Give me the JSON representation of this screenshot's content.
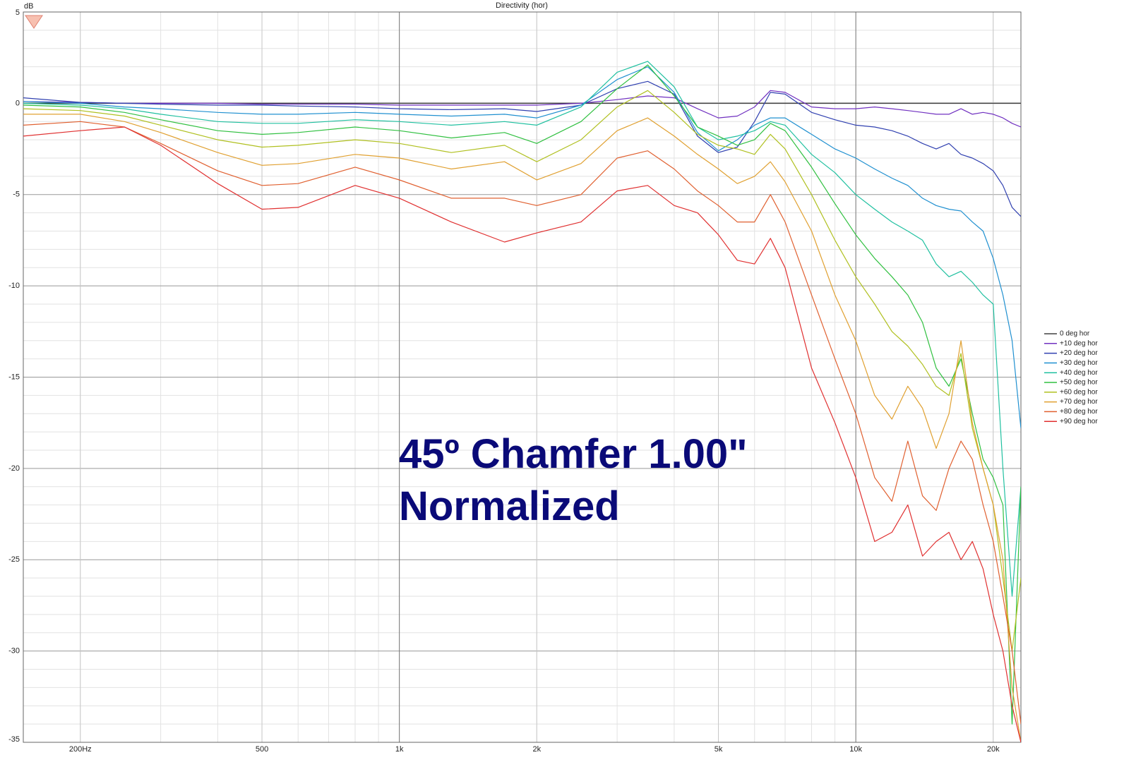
{
  "chart_data": {
    "type": "line",
    "title": "Directivity (hor)",
    "y_label": "dB",
    "annotations": [
      "45º Chamfer 1.00\"",
      "Normalized"
    ],
    "log_x": true,
    "grid": true,
    "legend": "right",
    "xlim": [
      150,
      23000
    ],
    "ylim": [
      -35,
      5
    ],
    "xticks": [
      {
        "value": 200,
        "label": "200Hz"
      },
      500,
      {
        "value": 1000,
        "label": "1k"
      },
      {
        "value": 2000,
        "label": "2k"
      },
      {
        "value": 5000,
        "label": "5k"
      },
      {
        "value": 10000,
        "label": "10k"
      },
      {
        "value": 20000,
        "label": "20k"
      }
    ],
    "yticks": [
      5,
      0,
      -5,
      -10,
      -15,
      -20,
      -25,
      -30,
      -35
    ],
    "x": [
      150,
      200,
      250,
      300,
      400,
      500,
      600,
      800,
      1000,
      1300,
      1700,
      2000,
      2500,
      3000,
      3500,
      4000,
      4500,
      5000,
      5500,
      6000,
      6500,
      7000,
      8000,
      9000,
      10000,
      11000,
      12000,
      13000,
      14000,
      15000,
      16000,
      17000,
      18000,
      19000,
      20000,
      21000,
      22000,
      23000
    ],
    "series": [
      {
        "name": "0 deg hor",
        "color": "#404040",
        "values": [
          0,
          0,
          0,
          0,
          0,
          0,
          0,
          0,
          0,
          0,
          0,
          0,
          0,
          0,
          0,
          0,
          0,
          0,
          0,
          0,
          0,
          0,
          0,
          0,
          0,
          0,
          0,
          0,
          0,
          0,
          0,
          0,
          0,
          0,
          0,
          0,
          0,
          0
        ]
      },
      {
        "name": "+10 deg hor",
        "color": "#7030c0",
        "values": [
          0.1,
          0.05,
          0,
          0,
          0,
          -0.05,
          -0.05,
          -0.05,
          -0.1,
          -0.1,
          -0.1,
          -0.1,
          0,
          0.2,
          0.4,
          0.3,
          -0.3,
          -0.8,
          -0.7,
          -0.2,
          0.7,
          0.6,
          -0.2,
          -0.3,
          -0.3,
          -0.2,
          -0.3,
          -0.4,
          -0.5,
          -0.6,
          -0.6,
          -0.3,
          -0.6,
          -0.5,
          -0.6,
          -0.8,
          -1.1,
          -1.3
        ]
      },
      {
        "name": "+20 deg hor",
        "color": "#3040b0",
        "values": [
          0.3,
          0.05,
          0,
          -0.05,
          -0.1,
          -0.1,
          -0.15,
          -0.2,
          -0.3,
          -0.35,
          -0.3,
          -0.45,
          -0.1,
          0.8,
          1.2,
          0.5,
          -1.8,
          -2.7,
          -2.4,
          -1.0,
          0.6,
          0.5,
          -0.5,
          -0.9,
          -1.2,
          -1.3,
          -1.5,
          -1.8,
          -2.2,
          -2.5,
          -2.2,
          -2.8,
          -3.0,
          -3.3,
          -3.7,
          -4.5,
          -5.7,
          -6.2
        ]
      },
      {
        "name": "+30 deg hor",
        "color": "#2090d0",
        "values": [
          0.1,
          0,
          -0.2,
          -0.3,
          -0.5,
          -0.6,
          -0.6,
          -0.5,
          -0.6,
          -0.7,
          -0.6,
          -0.8,
          -0.1,
          1.3,
          2.0,
          0.6,
          -1.6,
          -2.6,
          -2.0,
          -1.2,
          -0.8,
          -0.8,
          -1.7,
          -2.5,
          -3.0,
          -3.6,
          -4.1,
          -4.5,
          -5.2,
          -5.6,
          -5.8,
          -5.9,
          -6.5,
          -7.0,
          -8.5,
          -10.5,
          -13,
          -17.8
        ]
      },
      {
        "name": "+40 deg hor",
        "color": "#20c0a0",
        "values": [
          0,
          -0.1,
          -0.3,
          -0.6,
          -1.0,
          -1.1,
          -1.1,
          -0.9,
          -1.0,
          -1.2,
          -1.0,
          -1.2,
          -0.2,
          1.7,
          2.3,
          0.9,
          -1.3,
          -2.0,
          -1.8,
          -1.5,
          -1.0,
          -1.2,
          -2.8,
          -3.8,
          -5.0,
          -5.8,
          -6.5,
          -7.0,
          -7.5,
          -8.8,
          -9.5,
          -9.2,
          -9.8,
          -10.5,
          -11,
          -20,
          -27,
          -21
        ]
      },
      {
        "name": "+50 deg hor",
        "color": "#30c040",
        "values": [
          -0.1,
          -0.2,
          -0.5,
          -0.9,
          -1.5,
          -1.7,
          -1.6,
          -1.3,
          -1.5,
          -1.9,
          -1.6,
          -2.2,
          -1.0,
          0.8,
          2.1,
          0.4,
          -1.3,
          -1.8,
          -2.3,
          -2.0,
          -1.1,
          -1.5,
          -3.5,
          -5.5,
          -7.2,
          -8.5,
          -9.5,
          -10.5,
          -12,
          -14.5,
          -15.5,
          -14,
          -17,
          -19.5,
          -20.5,
          -22,
          -34,
          -21
        ]
      },
      {
        "name": "+60 deg hor",
        "color": "#b0c020",
        "values": [
          -0.3,
          -0.4,
          -0.7,
          -1.2,
          -2.0,
          -2.4,
          -2.3,
          -2.0,
          -2.2,
          -2.7,
          -2.3,
          -3.2,
          -2.0,
          -0.2,
          0.7,
          -0.5,
          -1.7,
          -2.3,
          -2.5,
          -2.8,
          -1.7,
          -2.5,
          -5.0,
          -7.5,
          -9.5,
          -11,
          -12.5,
          -13.3,
          -14.3,
          -15.5,
          -16,
          -13.7,
          -17.8,
          -20,
          -22,
          -26,
          -30,
          -26
        ]
      },
      {
        "name": "+70 deg hor",
        "color": "#e0a030",
        "values": [
          -0.6,
          -0.6,
          -1.0,
          -1.6,
          -2.7,
          -3.4,
          -3.3,
          -2.8,
          -3.0,
          -3.6,
          -3.2,
          -4.2,
          -3.3,
          -1.5,
          -0.8,
          -1.8,
          -2.8,
          -3.6,
          -4.4,
          -4.0,
          -3.2,
          -4.3,
          -7.0,
          -10.5,
          -13,
          -16,
          -17.3,
          -15.5,
          -16.7,
          -18.9,
          -17,
          -13,
          -17.5,
          -20,
          -22,
          -25,
          -32,
          -35
        ]
      },
      {
        "name": "+80 deg hor",
        "color": "#e06030",
        "values": [
          -1.2,
          -1.0,
          -1.3,
          -2.2,
          -3.7,
          -4.5,
          -4.4,
          -3.5,
          -4.2,
          -5.2,
          -5.2,
          -5.6,
          -5.0,
          -3.0,
          -2.6,
          -3.6,
          -4.8,
          -5.6,
          -6.5,
          -6.5,
          -5.0,
          -6.5,
          -10.5,
          -14,
          -17,
          -20.5,
          -21.8,
          -18.5,
          -21.5,
          -22.3,
          -20,
          -18.5,
          -19.5,
          -22,
          -24,
          -27,
          -30,
          -34
        ]
      },
      {
        "name": "+90 deg hor",
        "color": "#e03030",
        "values": [
          -1.8,
          -1.5,
          -1.3,
          -2.3,
          -4.4,
          -5.8,
          -5.7,
          -4.5,
          -5.2,
          -6.5,
          -7.6,
          -7.1,
          -6.5,
          -4.8,
          -4.5,
          -5.6,
          -6.0,
          -7.2,
          -8.6,
          -8.8,
          -7.4,
          -9.0,
          -14.5,
          -17.5,
          -20.5,
          -24,
          -23.5,
          -22,
          -24.8,
          -24,
          -23.5,
          -25,
          -24,
          -25.5,
          -28,
          -30,
          -33,
          -35
        ]
      }
    ]
  }
}
